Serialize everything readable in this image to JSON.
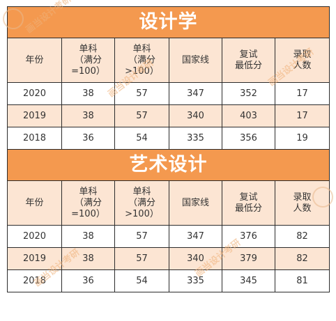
{
  "tables": [
    {
      "title": "设计学",
      "headers": [
        "年份",
        "单科\n（满分\n=100）",
        "单科\n（满分\n>100）",
        "国家线",
        "复试\n最低分",
        "录取\n人数"
      ],
      "rows": [
        [
          "2020",
          "38",
          "57",
          "347",
          "352",
          "17"
        ],
        [
          "2019",
          "38",
          "57",
          "340",
          "403",
          "17"
        ],
        [
          "2018",
          "36",
          "54",
          "335",
          "356",
          "19"
        ]
      ]
    },
    {
      "title": "艺术设计",
      "headers": [
        "年份",
        "单科\n（满分\n=100）",
        "单科\n（满分\n>100）",
        "国家线",
        "复试\n最低分",
        "录取\n人数"
      ],
      "rows": [
        [
          "2020",
          "38",
          "57",
          "347",
          "376",
          "82"
        ],
        [
          "2019",
          "38",
          "57",
          "340",
          "379",
          "82"
        ],
        [
          "2018",
          "36",
          "54",
          "335",
          "345",
          "81"
        ]
      ]
    }
  ],
  "watermark": {
    "text": "画当设计考研"
  },
  "colors": {
    "title_bg": "#f4994f",
    "shade_bg": "#fce5d3",
    "border": "#2b2b2b"
  }
}
